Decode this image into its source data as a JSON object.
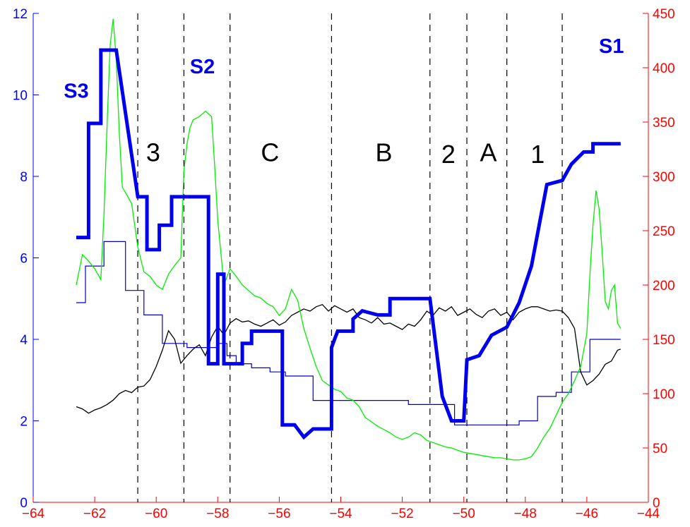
{
  "chart_data": {
    "type": "line",
    "title": "",
    "xlabel": "",
    "ylabel_left": "",
    "ylabel_right": "",
    "xlim": [
      -64,
      -44
    ],
    "ylim_left": [
      0,
      12
    ],
    "ylim_right": [
      0,
      450
    ],
    "grid": false,
    "x_ticks": [
      "−64",
      "−62",
      "−60",
      "−58",
      "−56",
      "−54",
      "−52",
      "−50",
      "−48",
      "−46",
      "−44"
    ],
    "y_left_ticks": [
      "0",
      "2",
      "4",
      "6",
      "8",
      "10",
      "12"
    ],
    "y_right_ticks": [
      "0",
      "50",
      "100",
      "150",
      "200",
      "250",
      "300",
      "350",
      "400",
      "450"
    ],
    "dashed_lines_x": [
      -60.6,
      -59.1,
      -57.6,
      -54.3,
      -51.1,
      -49.9,
      -48.6,
      -46.8
    ],
    "region_labels": [
      {
        "text": "3",
        "x": -60.1,
        "y": 8.6
      },
      {
        "text": "C",
        "x": -56.3,
        "y": 8.6
      },
      {
        "text": "B",
        "x": -52.6,
        "y": 8.6
      },
      {
        "text": "2",
        "x": -50.5,
        "y": 8.55
      },
      {
        "text": "A",
        "x": -49.2,
        "y": 8.6
      },
      {
        "text": "1",
        "x": -47.6,
        "y": 8.55
      }
    ],
    "series_labels": [
      {
        "text": "S3",
        "x": -62.6,
        "y": 10.1
      },
      {
        "text": "S2",
        "x": -58.5,
        "y": 10.7
      },
      {
        "text": "S1",
        "x": -45.2,
        "y": 11.2
      }
    ],
    "series": [
      {
        "key": "thick_blue_step",
        "axis": "left",
        "color": "#0000ee",
        "step": true,
        "x": [
          -62.6,
          -62.2,
          -62.2,
          -61.8,
          -61.8,
          -61.3,
          -60.6,
          -60.6,
          -60.3,
          -60.3,
          -59.9,
          -59.9,
          -59.5,
          -59.5,
          -59.1,
          -59.1,
          -58.8,
          -58.3,
          -58.3,
          -58.0,
          -58.0,
          -57.8,
          -57.8,
          -57.5,
          -57.5,
          -57.2,
          -57.2,
          -56.9,
          -56.9,
          -56.5,
          -56.5,
          -55.9,
          -55.9,
          -55.5,
          -55.2,
          -55.2,
          -54.9,
          -54.9,
          -54.3,
          -54.3,
          -54.1,
          -54.1,
          -53.6,
          -53.6,
          -53.3,
          -53.3,
          -52.8,
          -52.8,
          -52.4,
          -52.4,
          -51.9,
          -51.9,
          -51.1,
          -50.7,
          -50.7,
          -50.4,
          -50.4,
          -50.0,
          -50.0,
          -49.9,
          -49.9,
          -49.5,
          -49.5,
          -49.1,
          -49.1,
          -48.6,
          -48.6,
          -48.2,
          -48.2,
          -47.8,
          -47.8,
          -47.3,
          -47.3,
          -46.8,
          -46.8,
          -46.5,
          -46.5,
          -46.1,
          -46.1,
          -45.8,
          -45.8,
          -45.4,
          -45.4,
          -44.9
        ],
        "y": [
          6.5,
          6.5,
          9.3,
          9.3,
          11.1,
          11.1,
          7.5,
          7.5,
          7.5,
          6.2,
          6.2,
          6.8,
          6.8,
          7.5,
          7.5,
          7.5,
          7.5,
          7.5,
          3.4,
          3.4,
          5.6,
          5.6,
          3.4,
          3.4,
          3.4,
          3.4,
          3.9,
          3.9,
          4.2,
          4.2,
          4.2,
          4.2,
          1.9,
          1.9,
          1.6,
          1.6,
          1.8,
          1.8,
          1.8,
          3.8,
          4.2,
          4.2,
          4.2,
          4.5,
          4.7,
          4.7,
          4.6,
          4.6,
          4.6,
          5.0,
          5.0,
          5.0,
          5.0,
          2.6,
          2.6,
          2.0,
          2.0,
          2.0,
          2.0,
          3.5,
          3.5,
          3.6,
          3.6,
          4.1,
          4.1,
          4.3,
          4.3,
          4.9,
          4.9,
          5.8,
          5.8,
          7.8,
          7.8,
          7.9,
          7.9,
          8.3,
          8.3,
          8.6,
          8.6,
          8.6,
          8.8,
          8.8,
          8.8,
          8.8
        ]
      },
      {
        "key": "thin_blue_step",
        "axis": "left",
        "color": "#0000cc",
        "step": true,
        "x": [
          -62.6,
          -62.3,
          -62.3,
          -61.7,
          -61.7,
          -61.0,
          -61.0,
          -60.7,
          -60.7,
          -60.4,
          -60.4,
          -59.8,
          -59.8,
          -59.0,
          -59.0,
          -58.0,
          -58.0,
          -57.7,
          -57.7,
          -57.4,
          -57.4,
          -56.9,
          -56.9,
          -56.3,
          -56.3,
          -55.8,
          -55.8,
          -54.9,
          -54.9,
          -51.8,
          -51.8,
          -50.3,
          -50.3,
          -48.7,
          -48.7,
          -48.2,
          -48.2,
          -47.6,
          -47.6,
          -47.0,
          -47.0,
          -46.5,
          -46.5,
          -45.9,
          -45.9,
          -44.9
        ],
        "y": [
          4.9,
          4.9,
          5.8,
          5.8,
          6.4,
          6.4,
          5.2,
          5.2,
          5.2,
          5.2,
          4.6,
          4.6,
          3.9,
          3.9,
          3.8,
          3.8,
          3.9,
          3.9,
          3.6,
          3.6,
          3.4,
          3.4,
          3.3,
          3.3,
          3.2,
          3.2,
          3.1,
          3.1,
          2.5,
          2.5,
          2.4,
          2.4,
          1.9,
          1.9,
          1.9,
          1.9,
          2.0,
          2.0,
          2.6,
          2.6,
          2.7,
          2.7,
          3.2,
          3.2,
          4.0,
          4.0
        ]
      },
      {
        "key": "black_line",
        "axis": "right",
        "color": "#000000",
        "step": false,
        "x": [
          -62.6,
          -62.4,
          -62.2,
          -62.0,
          -61.8,
          -61.6,
          -61.4,
          -61.2,
          -61.0,
          -60.8,
          -60.6,
          -60.4,
          -60.2,
          -60.0,
          -59.8,
          -59.6,
          -59.4,
          -59.2,
          -59.0,
          -58.8,
          -58.6,
          -58.4,
          -58.2,
          -58.0,
          -57.8,
          -57.6,
          -57.4,
          -57.2,
          -57.0,
          -56.8,
          -56.6,
          -56.4,
          -56.2,
          -56.0,
          -55.8,
          -55.6,
          -55.4,
          -55.2,
          -55.0,
          -54.8,
          -54.6,
          -54.4,
          -54.2,
          -54.0,
          -53.8,
          -53.6,
          -53.4,
          -53.2,
          -53.0,
          -52.8,
          -52.6,
          -52.4,
          -52.2,
          -52.0,
          -51.8,
          -51.6,
          -51.4,
          -51.2,
          -51.0,
          -50.8,
          -50.6,
          -50.4,
          -50.2,
          -50.0,
          -49.8,
          -49.6,
          -49.4,
          -49.2,
          -49.0,
          -48.8,
          -48.6,
          -48.4,
          -48.2,
          -48.0,
          -47.8,
          -47.6,
          -47.4,
          -47.2,
          -47.0,
          -46.8,
          -46.6,
          -46.4,
          -46.2,
          -46.0,
          -45.8,
          -45.6,
          -45.4,
          -45.2,
          -45.0,
          -44.9
        ],
        "y": [
          88,
          86,
          82,
          85,
          87,
          90,
          94,
          100,
          103,
          101,
          106,
          107,
          113,
          125,
          140,
          158,
          150,
          128,
          135,
          141,
          145,
          135,
          152,
          162,
          154,
          165,
          169,
          166,
          167,
          164,
          162,
          165,
          168,
          163,
          166,
          172,
          175,
          178,
          176,
          180,
          182,
          176,
          181,
          178,
          175,
          178,
          170,
          168,
          165,
          170,
          164,
          165,
          162,
          159,
          164,
          162,
          168,
          176,
          172,
          179,
          176,
          180,
          172,
          175,
          178,
          173,
          170,
          176,
          178,
          172,
          175,
          168,
          175,
          178,
          180,
          180,
          178,
          176,
          177,
          176,
          170,
          160,
          120,
          108,
          112,
          118,
          127,
          130,
          140,
          141
        ]
      },
      {
        "key": "green_line",
        "axis": "right",
        "color": "#00ee00",
        "step": false,
        "x": [
          -62.6,
          -62.4,
          -62.2,
          -62.0,
          -61.8,
          -61.7,
          -61.6,
          -61.5,
          -61.4,
          -61.3,
          -61.2,
          -61.1,
          -61.0,
          -60.8,
          -60.6,
          -60.4,
          -60.2,
          -60.0,
          -59.8,
          -59.6,
          -59.4,
          -59.2,
          -59.1,
          -59.0,
          -58.9,
          -58.8,
          -58.6,
          -58.4,
          -58.2,
          -58.1,
          -58.0,
          -57.9,
          -57.8,
          -57.6,
          -57.4,
          -57.2,
          -57.0,
          -56.8,
          -56.6,
          -56.4,
          -56.2,
          -56.0,
          -55.8,
          -55.6,
          -55.4,
          -55.2,
          -55.0,
          -54.8,
          -54.6,
          -54.4,
          -54.2,
          -54.0,
          -53.8,
          -53.6,
          -53.4,
          -53.2,
          -53.0,
          -52.8,
          -52.6,
          -52.4,
          -52.2,
          -52.0,
          -51.8,
          -51.6,
          -51.4,
          -51.2,
          -51.0,
          -50.8,
          -50.6,
          -50.4,
          -50.2,
          -50.0,
          -49.8,
          -49.6,
          -49.4,
          -49.2,
          -49.0,
          -48.8,
          -48.6,
          -48.4,
          -48.2,
          -48.0,
          -47.8,
          -47.6,
          -47.4,
          -47.2,
          -47.0,
          -46.8,
          -46.6,
          -46.4,
          -46.2,
          -46.0,
          -45.9,
          -45.8,
          -45.7,
          -45.6,
          -45.5,
          -45.4,
          -45.3,
          -45.2,
          -45.1,
          -45.0,
          -44.9
        ],
        "y": [
          200,
          228,
          222,
          215,
          205,
          265,
          345,
          420,
          445,
          408,
          340,
          290,
          285,
          275,
          235,
          212,
          208,
          200,
          196,
          210,
          218,
          225,
          305,
          330,
          345,
          352,
          355,
          360,
          355,
          310,
          260,
          230,
          200,
          215,
          208,
          200,
          195,
          190,
          188,
          183,
          180,
          172,
          178,
          196,
          186,
          160,
          142,
          125,
          112,
          108,
          104,
          102,
          96,
          94,
          88,
          78,
          74,
          70,
          67,
          64,
          60,
          58,
          60,
          64,
          62,
          57,
          55,
          53,
          51,
          50,
          48,
          46,
          45,
          44,
          43,
          42,
          41,
          41,
          40,
          39,
          39,
          40,
          42,
          50,
          60,
          68,
          80,
          92,
          100,
          112,
          125,
          155,
          210,
          255,
          287,
          270,
          230,
          185,
          178,
          195,
          200,
          165,
          160
        ]
      }
    ]
  }
}
